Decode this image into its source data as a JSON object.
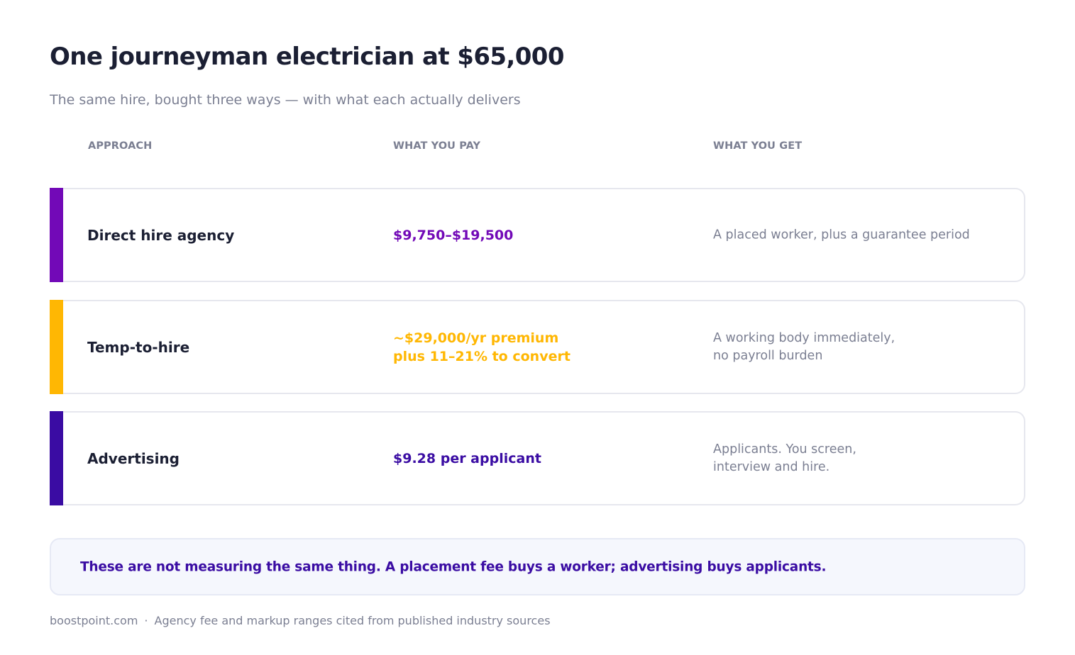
{
  "header": {
    "title": "One journeyman electrician at $65,000",
    "subtitle": "The same hire, bought three ways — with what each actually delivers"
  },
  "columns": {
    "approach": "APPROACH",
    "pay": "WHAT YOU PAY",
    "get": "WHAT YOU GET"
  },
  "rows": [
    {
      "approach": "Direct hire agency",
      "pay_lines": [
        "$9,750–$19,500"
      ],
      "get_lines": [
        "A placed worker, plus a guarantee period"
      ],
      "accent": "#7209b7"
    },
    {
      "approach": "Temp-to-hire",
      "pay_lines": [
        "~$29,000/yr premium",
        "plus 11–21% to convert"
      ],
      "get_lines": [
        "A working body immediately,",
        "no payroll burden"
      ],
      "accent": "#ffb703"
    },
    {
      "approach": "Advertising",
      "pay_lines": [
        "$9.28 per applicant"
      ],
      "get_lines": [
        "Applicants. You screen,",
        "interview and hire."
      ],
      "accent": "#3a0ca3"
    }
  ],
  "note": {
    "text": "These are not measuring the same thing. A placement fee buys a worker; advertising buys applicants."
  },
  "footer": {
    "site": "boostpoint.com",
    "separator": "·",
    "source": "Agency fee and markup ranges cited from published industry sources"
  }
}
